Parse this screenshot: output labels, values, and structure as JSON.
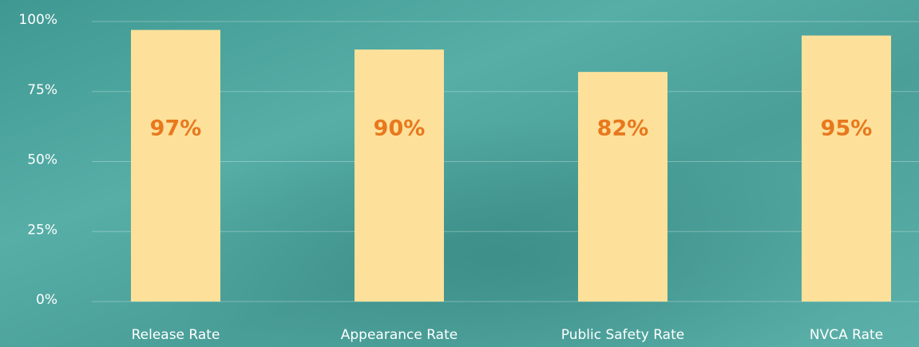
{
  "chart_data": {
    "type": "bar",
    "categories": [
      "Release Rate",
      "Appearance Rate",
      "Public Safety Rate",
      "NVCA Rate"
    ],
    "values": [
      97,
      90,
      82,
      95
    ],
    "value_labels": [
      "97%",
      "90%",
      "82%",
      "95%"
    ],
    "color": "#fde19a",
    "ylim": [
      0,
      100
    ],
    "yticks": [
      {
        "value": 0,
        "label": "0%"
      },
      {
        "value": 25,
        "label": "25%"
      },
      {
        "value": 50,
        "label": "50%"
      },
      {
        "value": 75,
        "label": "75%"
      },
      {
        "value": 100,
        "label": "100%"
      }
    ],
    "grid": true
  }
}
